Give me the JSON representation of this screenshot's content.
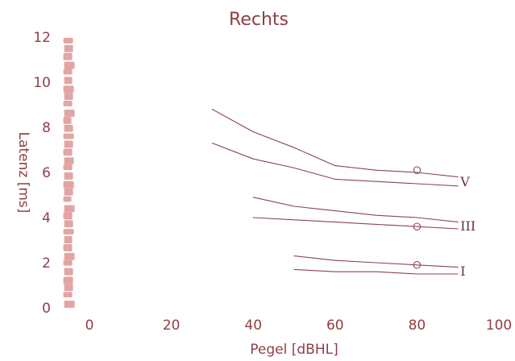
{
  "chart_data": {
    "type": "line",
    "title": "Rechts",
    "xlabel": "Pegel [dBHL]",
    "ylabel": "Latenz [ms]",
    "xlim": [
      -5,
      100
    ],
    "ylim": [
      0,
      12
    ],
    "xticks": [
      0,
      20,
      40,
      60,
      80,
      100
    ],
    "yticks": [
      0,
      2,
      4,
      6,
      8,
      10,
      12
    ],
    "grid": false,
    "colors": {
      "text": "#8f3f43",
      "lines": "#8a4650",
      "bar": "#e3a4a4",
      "wave_labels": "#6d2f38"
    },
    "series": [
      {
        "name": "V",
        "upper": [
          [
            30,
            8.8
          ],
          [
            40,
            7.8
          ],
          [
            50,
            7.1
          ],
          [
            60,
            6.3
          ],
          [
            70,
            6.1
          ],
          [
            80,
            6.0
          ],
          [
            90,
            5.8
          ]
        ],
        "lower": [
          [
            30,
            7.3
          ],
          [
            40,
            6.6
          ],
          [
            50,
            6.2
          ],
          [
            60,
            5.7
          ],
          [
            70,
            5.6
          ],
          [
            80,
            5.5
          ],
          [
            90,
            5.4
          ]
        ],
        "marker": [
          80,
          6.1
        ]
      },
      {
        "name": "III",
        "upper": [
          [
            40,
            4.9
          ],
          [
            50,
            4.5
          ],
          [
            60,
            4.3
          ],
          [
            70,
            4.1
          ],
          [
            80,
            4.0
          ],
          [
            90,
            3.8
          ]
        ],
        "lower": [
          [
            40,
            4.0
          ],
          [
            50,
            3.9
          ],
          [
            60,
            3.8
          ],
          [
            70,
            3.7
          ],
          [
            80,
            3.6
          ],
          [
            90,
            3.5
          ]
        ],
        "marker": [
          80,
          3.6
        ]
      },
      {
        "name": "I",
        "upper": [
          [
            50,
            2.3
          ],
          [
            60,
            2.1
          ],
          [
            70,
            2.0
          ],
          [
            80,
            1.9
          ],
          [
            90,
            1.8
          ]
        ],
        "lower": [
          [
            50,
            1.7
          ],
          [
            60,
            1.6
          ],
          [
            70,
            1.6
          ],
          [
            80,
            1.5
          ],
          [
            90,
            1.5
          ]
        ],
        "marker": [
          80,
          1.9
        ]
      }
    ],
    "band": {
      "x": -5,
      "y_min": 0,
      "y_max": 12
    }
  }
}
